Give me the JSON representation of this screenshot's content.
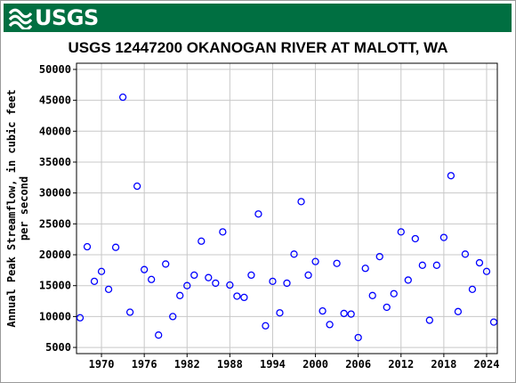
{
  "header": {
    "agency": "USGS"
  },
  "colors": {
    "banner": "#006f41",
    "marker": "#0000ff",
    "grid": "#c8c8c8"
  },
  "chart_data": {
    "type": "scatter",
    "title": "USGS 12447200 OKANOGAN RIVER AT MALOTT, WA",
    "ylabel_line1": "Annual Peak Streamflow, in cubic feet",
    "ylabel_line2": "per second",
    "xlabel": "",
    "xlim": [
      1966.5,
      2025.5
    ],
    "ylim": [
      4000,
      51000
    ],
    "xticks": [
      1970,
      1976,
      1982,
      1988,
      1994,
      2000,
      2006,
      2012,
      2018,
      2024
    ],
    "yticks": [
      5000,
      10000,
      15000,
      20000,
      25000,
      30000,
      35000,
      40000,
      45000,
      50000
    ],
    "grid": true,
    "marker": "open-circle",
    "series": [
      {
        "points": [
          [
            1967,
            9800
          ],
          [
            1968,
            21300
          ],
          [
            1969,
            15700
          ],
          [
            1970,
            17300
          ],
          [
            1971,
            14400
          ],
          [
            1972,
            21200
          ],
          [
            1973,
            45500
          ],
          [
            1974,
            10700
          ],
          [
            1975,
            31100
          ],
          [
            1976,
            17600
          ],
          [
            1977,
            16000
          ],
          [
            1978,
            7000
          ],
          [
            1979,
            18500
          ],
          [
            1980,
            10000
          ],
          [
            1981,
            13400
          ],
          [
            1982,
            15000
          ],
          [
            1983,
            16700
          ],
          [
            1984,
            22200
          ],
          [
            1985,
            16300
          ],
          [
            1986,
            15400
          ],
          [
            1987,
            23700
          ],
          [
            1988,
            15100
          ],
          [
            1989,
            13300
          ],
          [
            1990,
            13100
          ],
          [
            1991,
            16700
          ],
          [
            1992,
            26600
          ],
          [
            1993,
            8500
          ],
          [
            1994,
            15700
          ],
          [
            1995,
            10600
          ],
          [
            1996,
            15400
          ],
          [
            1997,
            20100
          ],
          [
            1998,
            28600
          ],
          [
            1999,
            16700
          ],
          [
            2000,
            18900
          ],
          [
            2001,
            10900
          ],
          [
            2002,
            8700
          ],
          [
            2003,
            18600
          ],
          [
            2004,
            10500
          ],
          [
            2005,
            10400
          ],
          [
            2006,
            6600
          ],
          [
            2007,
            17800
          ],
          [
            2008,
            13400
          ],
          [
            2009,
            19700
          ],
          [
            2010,
            11500
          ],
          [
            2011,
            13700
          ],
          [
            2012,
            23700
          ],
          [
            2013,
            15900
          ],
          [
            2014,
            22600
          ],
          [
            2015,
            18300
          ],
          [
            2016,
            9400
          ],
          [
            2017,
            18300
          ],
          [
            2018,
            22800
          ],
          [
            2019,
            32800
          ],
          [
            2020,
            10800
          ],
          [
            2021,
            20100
          ],
          [
            2022,
            14400
          ],
          [
            2023,
            18700
          ],
          [
            2024,
            17300
          ],
          [
            2025,
            9100
          ]
        ]
      }
    ]
  }
}
